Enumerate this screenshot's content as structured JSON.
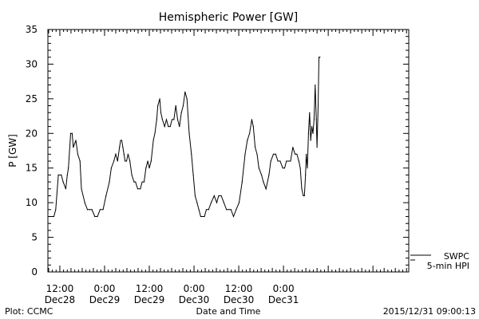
{
  "chart_data": {
    "type": "line",
    "title": "Hemispheric Power [GW]",
    "ylabel": "P [GW]",
    "xlabel": "Date and Time",
    "ylim": [
      0,
      35
    ],
    "y_ticks": [
      0,
      5,
      10,
      15,
      20,
      25,
      30,
      35
    ],
    "x_unit": "hours since 2015-12-28 00:00 UT",
    "xlim": [
      8.8,
      105.6
    ],
    "x_ticks": [
      {
        "x": 12,
        "time": "12:00",
        "date": "Dec28"
      },
      {
        "x": 24,
        "time": "0:00",
        "date": "Dec29"
      },
      {
        "x": 36,
        "time": "12:00",
        "date": "Dec29"
      },
      {
        "x": 48,
        "time": "0:00",
        "date": "Dec30"
      },
      {
        "x": 60,
        "time": "12:00",
        "date": "Dec30"
      },
      {
        "x": 72,
        "time": "0:00",
        "date": "Dec31"
      }
    ],
    "series": [
      {
        "name": "5-min HPI",
        "x": [
          8.8,
          10.4,
          10.9,
          11.6,
          12.4,
          12.9,
          13.6,
          14.0,
          14.3,
          14.9,
          15.3,
          15.6,
          16.3,
          16.8,
          17.4,
          17.8,
          18.7,
          19.4,
          20.0,
          20.6,
          21.4,
          22.1,
          22.8,
          23.6,
          24.4,
          25.3,
          25.8,
          26.5,
          27.0,
          27.5,
          28.0,
          28.3,
          28.6,
          28.9,
          29.2,
          29.5,
          29.9,
          30.3,
          30.8,
          31.3,
          31.9,
          32.3,
          32.9,
          33.6,
          34.1,
          34.6,
          35.1,
          35.6,
          36.0,
          36.5,
          37.1,
          37.5,
          38.0,
          38.3,
          38.8,
          39.1,
          39.5,
          40.1,
          40.6,
          41.1,
          41.6,
          42.1,
          42.6,
          43.1,
          43.6,
          44.1,
          44.6,
          45.1,
          45.6,
          46.1,
          46.7,
          47.3,
          47.8,
          48.3,
          48.8,
          49.3,
          49.8,
          50.3,
          50.8,
          51.3,
          51.9,
          52.6,
          53.4,
          54.1,
          54.6,
          55.3,
          56.0,
          56.7,
          57.3,
          57.9,
          58.6,
          59.3,
          60.1,
          60.9,
          61.7,
          62.3,
          62.9,
          63.5,
          63.9,
          64.4,
          64.9,
          65.4,
          66.1,
          66.6,
          67.3,
          68.1,
          68.6,
          69.3,
          69.9,
          70.5,
          71.1,
          71.8,
          72.3,
          72.8,
          73.4,
          73.9,
          74.5,
          75.1,
          75.6,
          76.1,
          76.5,
          76.9,
          77.3,
          77.6,
          77.9,
          78.1,
          78.4,
          78.7,
          79.0,
          79.3,
          79.6,
          79.9,
          80.2,
          80.5,
          80.8,
          81.0,
          81.3,
          81.5,
          81.8
        ],
        "y": [
          8,
          8,
          9,
          14,
          14,
          13,
          12,
          14,
          15,
          20,
          20,
          18,
          19,
          17,
          16,
          12,
          10,
          9,
          9,
          9,
          8,
          8,
          9,
          9,
          11,
          13,
          15,
          16,
          17,
          16,
          18,
          19,
          19,
          18,
          17,
          16,
          16,
          17,
          16,
          14,
          13,
          13,
          12,
          12,
          13,
          13,
          15,
          16,
          15,
          16,
          19,
          20,
          22,
          24,
          25,
          23,
          22,
          21,
          22,
          21,
          21,
          22,
          22,
          24,
          22,
          21,
          23,
          24,
          26,
          25,
          20,
          17,
          14,
          11,
          10,
          9,
          8,
          8,
          8,
          9,
          9,
          10,
          11,
          10,
          11,
          11,
          10,
          9,
          9,
          9,
          8,
          9,
          10,
          13,
          17,
          19,
          20,
          22,
          21,
          18,
          17,
          15,
          14,
          13,
          12,
          14,
          16,
          17,
          17,
          16,
          16,
          15,
          15,
          16,
          16,
          16,
          18,
          17,
          17,
          16,
          15,
          12,
          11,
          11,
          14,
          17,
          15,
          20,
          23,
          19,
          21,
          20,
          22,
          27,
          22,
          18,
          24,
          31,
          31
        ]
      }
    ],
    "legend": [
      {
        "label": "SWPC",
        "color": "#000000"
      },
      {
        "label": "5-min HPI",
        "color": "#000000"
      }
    ],
    "footer_left": "Plot: CCMC",
    "footer_right": "2015/12/31 09:00:13",
    "line_color": "#000000",
    "grid": false
  }
}
